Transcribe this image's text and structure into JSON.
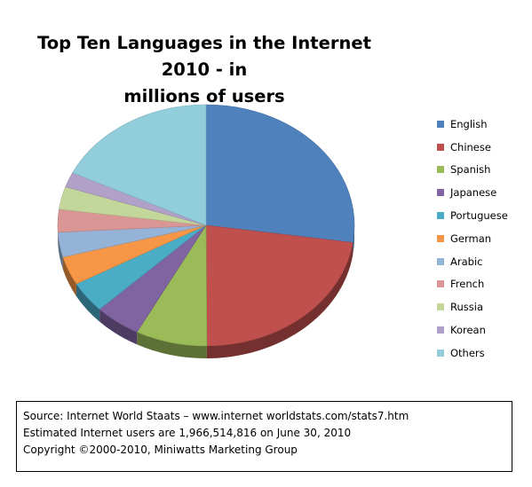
{
  "chart_data": {
    "type": "pie",
    "title": "Top Ten Languages in the Internet 2010 - in millions of users",
    "title_lines": [
      "Top Ten Languages in the Internet 2010 - in",
      "millions of users"
    ],
    "legend_position": "right",
    "style": "3d",
    "slices": [
      {
        "label": "English",
        "value": 536.6,
        "color": "#4F81BD"
      },
      {
        "label": "Chinese",
        "value": 444.9,
        "color": "#C0504D"
      },
      {
        "label": "Spanish",
        "value": 153.3,
        "color": "#9BBB59"
      },
      {
        "label": "Japanese",
        "value": 99.1,
        "color": "#8064A2"
      },
      {
        "label": "Portuguese",
        "value": 82.5,
        "color": "#4BACC6"
      },
      {
        "label": "German",
        "value": 75.2,
        "color": "#F79646"
      },
      {
        "label": "Arabic",
        "value": 65.4,
        "color": "#95B3D7"
      },
      {
        "label": "French",
        "value": 59.8,
        "color": "#DA9694"
      },
      {
        "label": "Russia",
        "value": 59.7,
        "color": "#C4D79B"
      },
      {
        "label": "Korean",
        "value": 39.4,
        "color": "#B1A0C7"
      },
      {
        "label": "Others",
        "value": 350.6,
        "color": "#92CDDC"
      }
    ]
  },
  "source_box": {
    "line1": "Source: Internet World Staats – www.internet worldstats.com/stats7.htm",
    "line2": "Estimated Internet users are 1,966,514,816  on June 30,  2010",
    "line3": "Copyright ©2000-2010,  Miniwatts Marketing Group"
  }
}
